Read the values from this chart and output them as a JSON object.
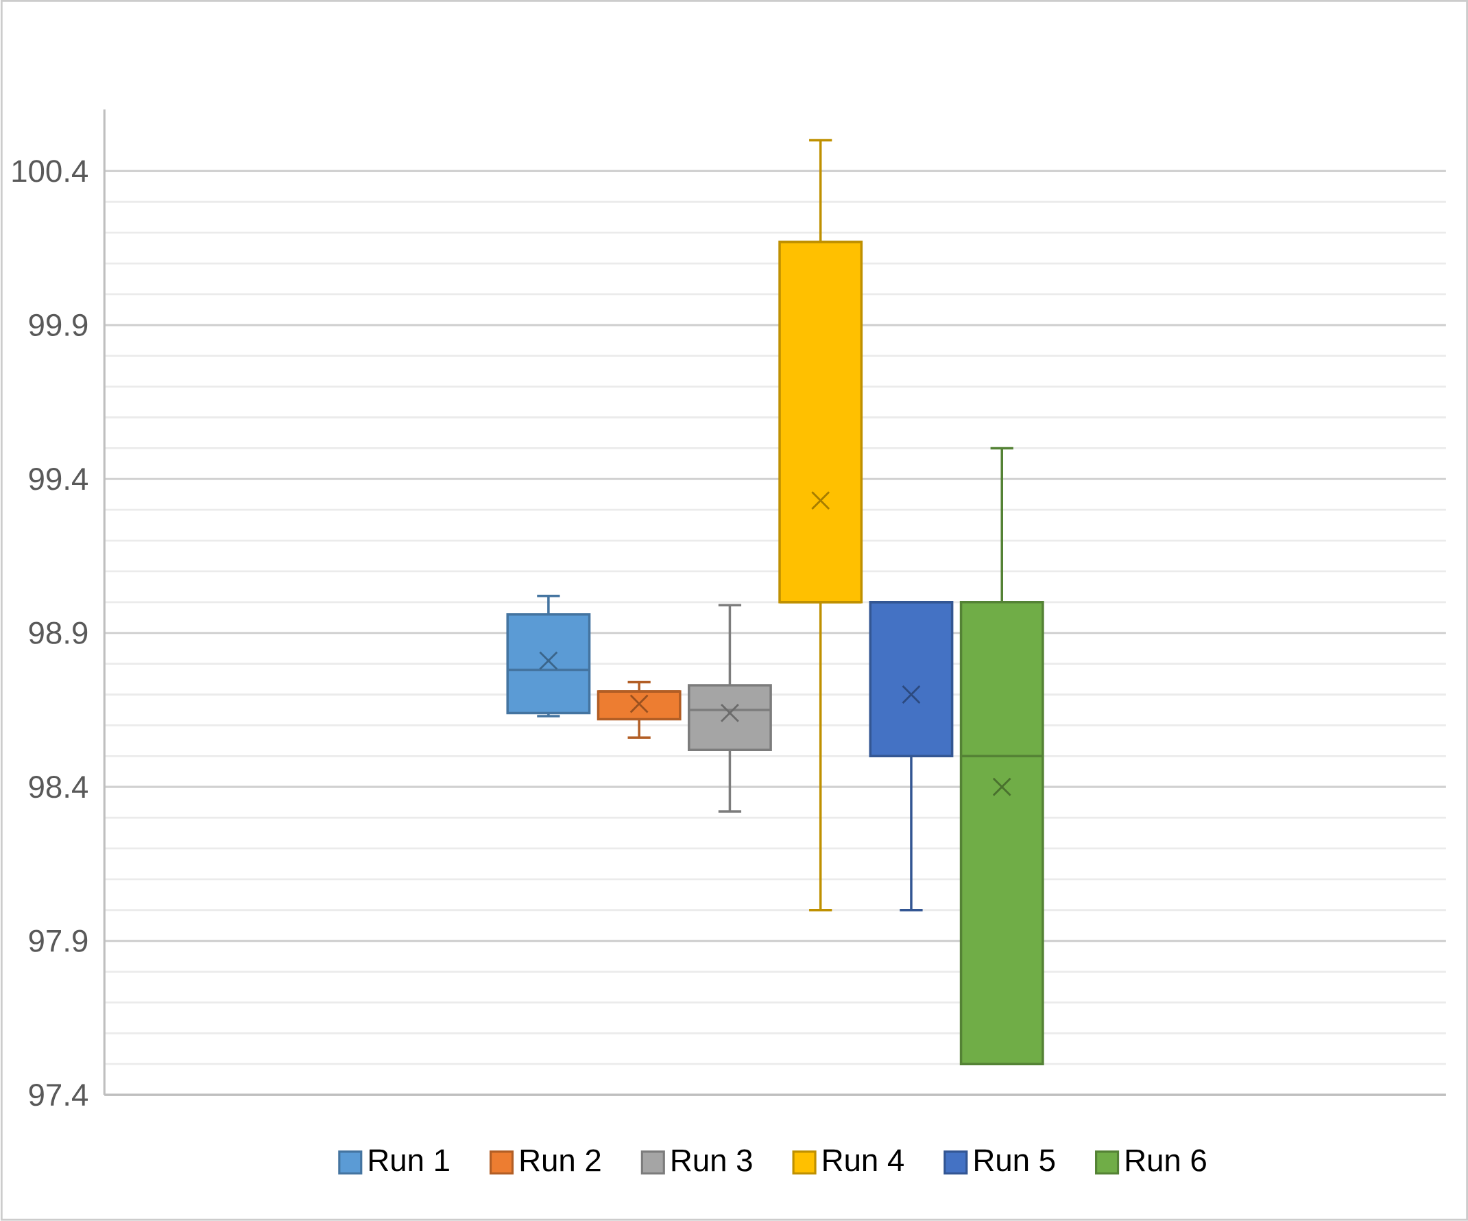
{
  "chart_data": {
    "type": "box",
    "categories": [
      null
    ],
    "series": [
      {
        "name": "Run 1",
        "color": "#5b9bd5",
        "boxes": [
          {
            "low": 98.63,
            "q1": 98.64,
            "median": 98.78,
            "q3": 98.96,
            "high": 99.02,
            "mean": 98.81
          }
        ]
      },
      {
        "name": "Run 2",
        "color": "#ed7d31",
        "boxes": [
          {
            "low": 98.56,
            "q1": 98.62,
            "median": 98.71,
            "q3": 98.71,
            "high": 98.74,
            "mean": 98.67
          }
        ]
      },
      {
        "name": "Run 3",
        "color": "#a5a5a5",
        "boxes": [
          {
            "low": 98.32,
            "q1": 98.52,
            "median": 98.65,
            "q3": 98.73,
            "high": 98.99,
            "mean": 98.64
          }
        ]
      },
      {
        "name": "Run 4",
        "color": "#ffc000",
        "boxes": [
          {
            "low": 98.0,
            "q1": 99.0,
            "median": 99.0,
            "q3": 100.17,
            "high": 100.5,
            "mean": 99.33
          }
        ]
      },
      {
        "name": "Run 5",
        "color": "#4472c4",
        "boxes": [
          {
            "low": 98.0,
            "q1": 98.5,
            "median": 99.0,
            "q3": 99.0,
            "high": 99.0,
            "mean": 98.7
          }
        ]
      },
      {
        "name": "Run 6",
        "color": "#70ad47",
        "boxes": [
          {
            "low": 97.5,
            "q1": 97.5,
            "median": 98.5,
            "q3": 99.0,
            "high": 99.5,
            "mean": 98.4
          }
        ]
      }
    ],
    "ylim": [
      97.4,
      100.6
    ],
    "yticks": [
      97.4,
      97.9,
      98.4,
      98.9,
      99.4,
      99.9,
      100.4
    ],
    "grid": true,
    "legend": "bottom",
    "marker": "cross"
  }
}
